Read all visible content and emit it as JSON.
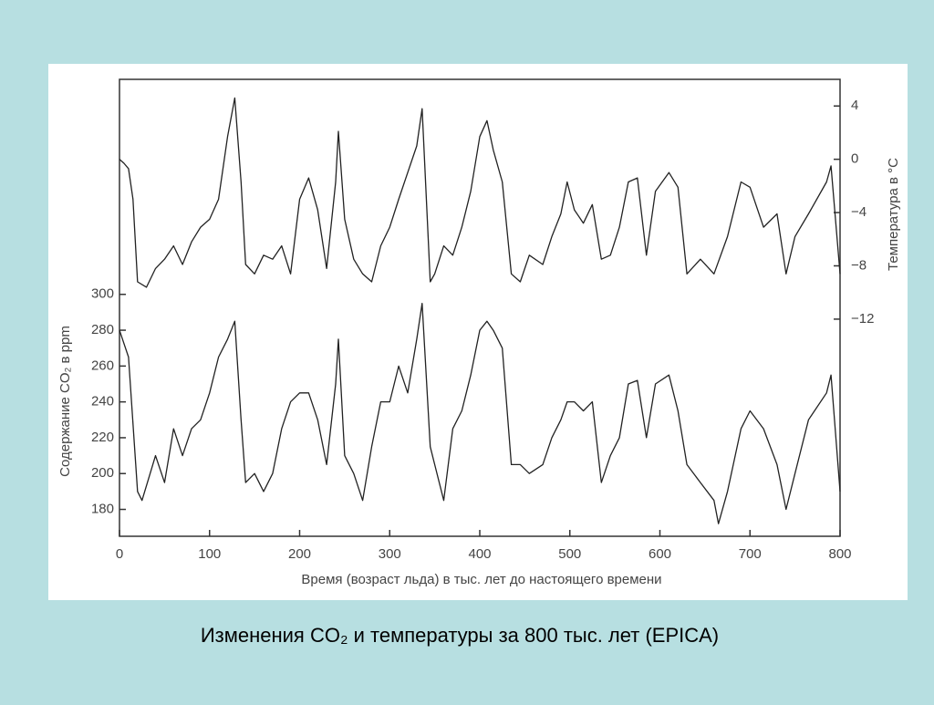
{
  "chart_data": {
    "type": "line",
    "title": "Изменения CO₂ и температуры за 800 тыс. лет (EPICA)",
    "xlabel": "Время (возраст льда) в тыс. лет до настоящего времени",
    "ylabel": "Содержание CO₂ в ppm",
    "y2label": "Температура в °C",
    "xlim": [
      0,
      800
    ],
    "xticks": [
      0,
      100,
      200,
      300,
      400,
      500,
      600,
      700,
      800
    ],
    "ylim": [
      165,
      420
    ],
    "yticks": [
      180,
      200,
      220,
      240,
      260,
      280,
      300
    ],
    "y2lim": [
      -28.3,
      6
    ],
    "y2ticks": [
      {
        "value": -12,
        "label": "−12"
      },
      {
        "value": -8,
        "label": "−8"
      },
      {
        "value": -4,
        "label": "−4"
      },
      0,
      4
    ],
    "series": [
      {
        "color": "#222222",
        "axis": "y2",
        "x": [
          0,
          5,
          10,
          15,
          20,
          30,
          40,
          50,
          60,
          70,
          80,
          90,
          100,
          110,
          120,
          128,
          135,
          140,
          150,
          160,
          170,
          180,
          190,
          200,
          210,
          220,
          230,
          240,
          243,
          250,
          260,
          270,
          280,
          290,
          300,
          310,
          320,
          330,
          336,
          345,
          350,
          360,
          370,
          380,
          390,
          400,
          408,
          415,
          425,
          435,
          445,
          455,
          470,
          480,
          490,
          497,
          505,
          515,
          525,
          535,
          545,
          555,
          565,
          575,
          585,
          595,
          610,
          620,
          630,
          645,
          660,
          675,
          690,
          700,
          715,
          730,
          740,
          750,
          765,
          785,
          790,
          800
        ],
        "values": [
          0,
          -0.3,
          -0.7,
          -3,
          -9.2,
          -9.6,
          -8.2,
          -7.5,
          -6.5,
          -7.9,
          -6.2,
          -5.1,
          -4.5,
          -3,
          1.7,
          4.6,
          -1.7,
          -7.9,
          -8.6,
          -7.2,
          -7.5,
          -6.5,
          -8.6,
          -3,
          -1.4,
          -3.8,
          -8.2,
          -1.7,
          2.1,
          -4.5,
          -7.5,
          -8.6,
          -9.2,
          -6.5,
          -5.1,
          -3,
          -1,
          1,
          3.8,
          -9.2,
          -8.6,
          -6.5,
          -7.2,
          -5.1,
          -2.4,
          1.7,
          2.9,
          0.7,
          -1.7,
          -8.6,
          -9.2,
          -7.2,
          -7.9,
          -5.8,
          -4.1,
          -1.7,
          -3.8,
          -4.8,
          -3.4,
          -7.5,
          -7.2,
          -5.1,
          -1.7,
          -1.4,
          -7.2,
          -2.4,
          -1,
          -2.1,
          -8.6,
          -7.5,
          -8.6,
          -5.8,
          -1.7,
          -2.1,
          -5.1,
          -4.1,
          -8.6,
          -5.8,
          -4.1,
          -1.7,
          -0.5,
          -8.6
        ]
      },
      {
        "color": "#222222",
        "axis": "y",
        "x": [
          0,
          10,
          20,
          25,
          40,
          50,
          60,
          70,
          80,
          90,
          100,
          110,
          120,
          128,
          135,
          140,
          150,
          160,
          170,
          180,
          190,
          200,
          210,
          220,
          230,
          240,
          243,
          250,
          260,
          270,
          280,
          290,
          300,
          310,
          320,
          330,
          336,
          345,
          350,
          360,
          370,
          380,
          390,
          400,
          408,
          415,
          425,
          435,
          445,
          455,
          470,
          480,
          490,
          497,
          505,
          515,
          525,
          535,
          545,
          555,
          565,
          575,
          585,
          595,
          610,
          620,
          630,
          645,
          660,
          665,
          675,
          690,
          700,
          715,
          730,
          740,
          750,
          765,
          785,
          790,
          800
        ],
        "values": [
          280,
          265,
          190,
          185,
          210,
          195,
          225,
          210,
          225,
          230,
          245,
          265,
          275,
          285,
          230,
          195,
          200,
          190,
          200,
          225,
          240,
          245,
          245,
          230,
          205,
          250,
          275,
          210,
          200,
          185,
          215,
          240,
          240,
          260,
          245,
          275,
          295,
          215,
          205,
          185,
          225,
          235,
          255,
          280,
          285,
          280,
          270,
          205,
          205,
          200,
          205,
          220,
          230,
          240,
          240,
          235,
          240,
          195,
          210,
          220,
          250,
          252,
          220,
          250,
          255,
          235,
          205,
          195,
          185,
          172,
          190,
          225,
          235,
          225,
          205,
          180,
          200,
          230,
          245,
          255,
          190
        ]
      }
    ]
  }
}
